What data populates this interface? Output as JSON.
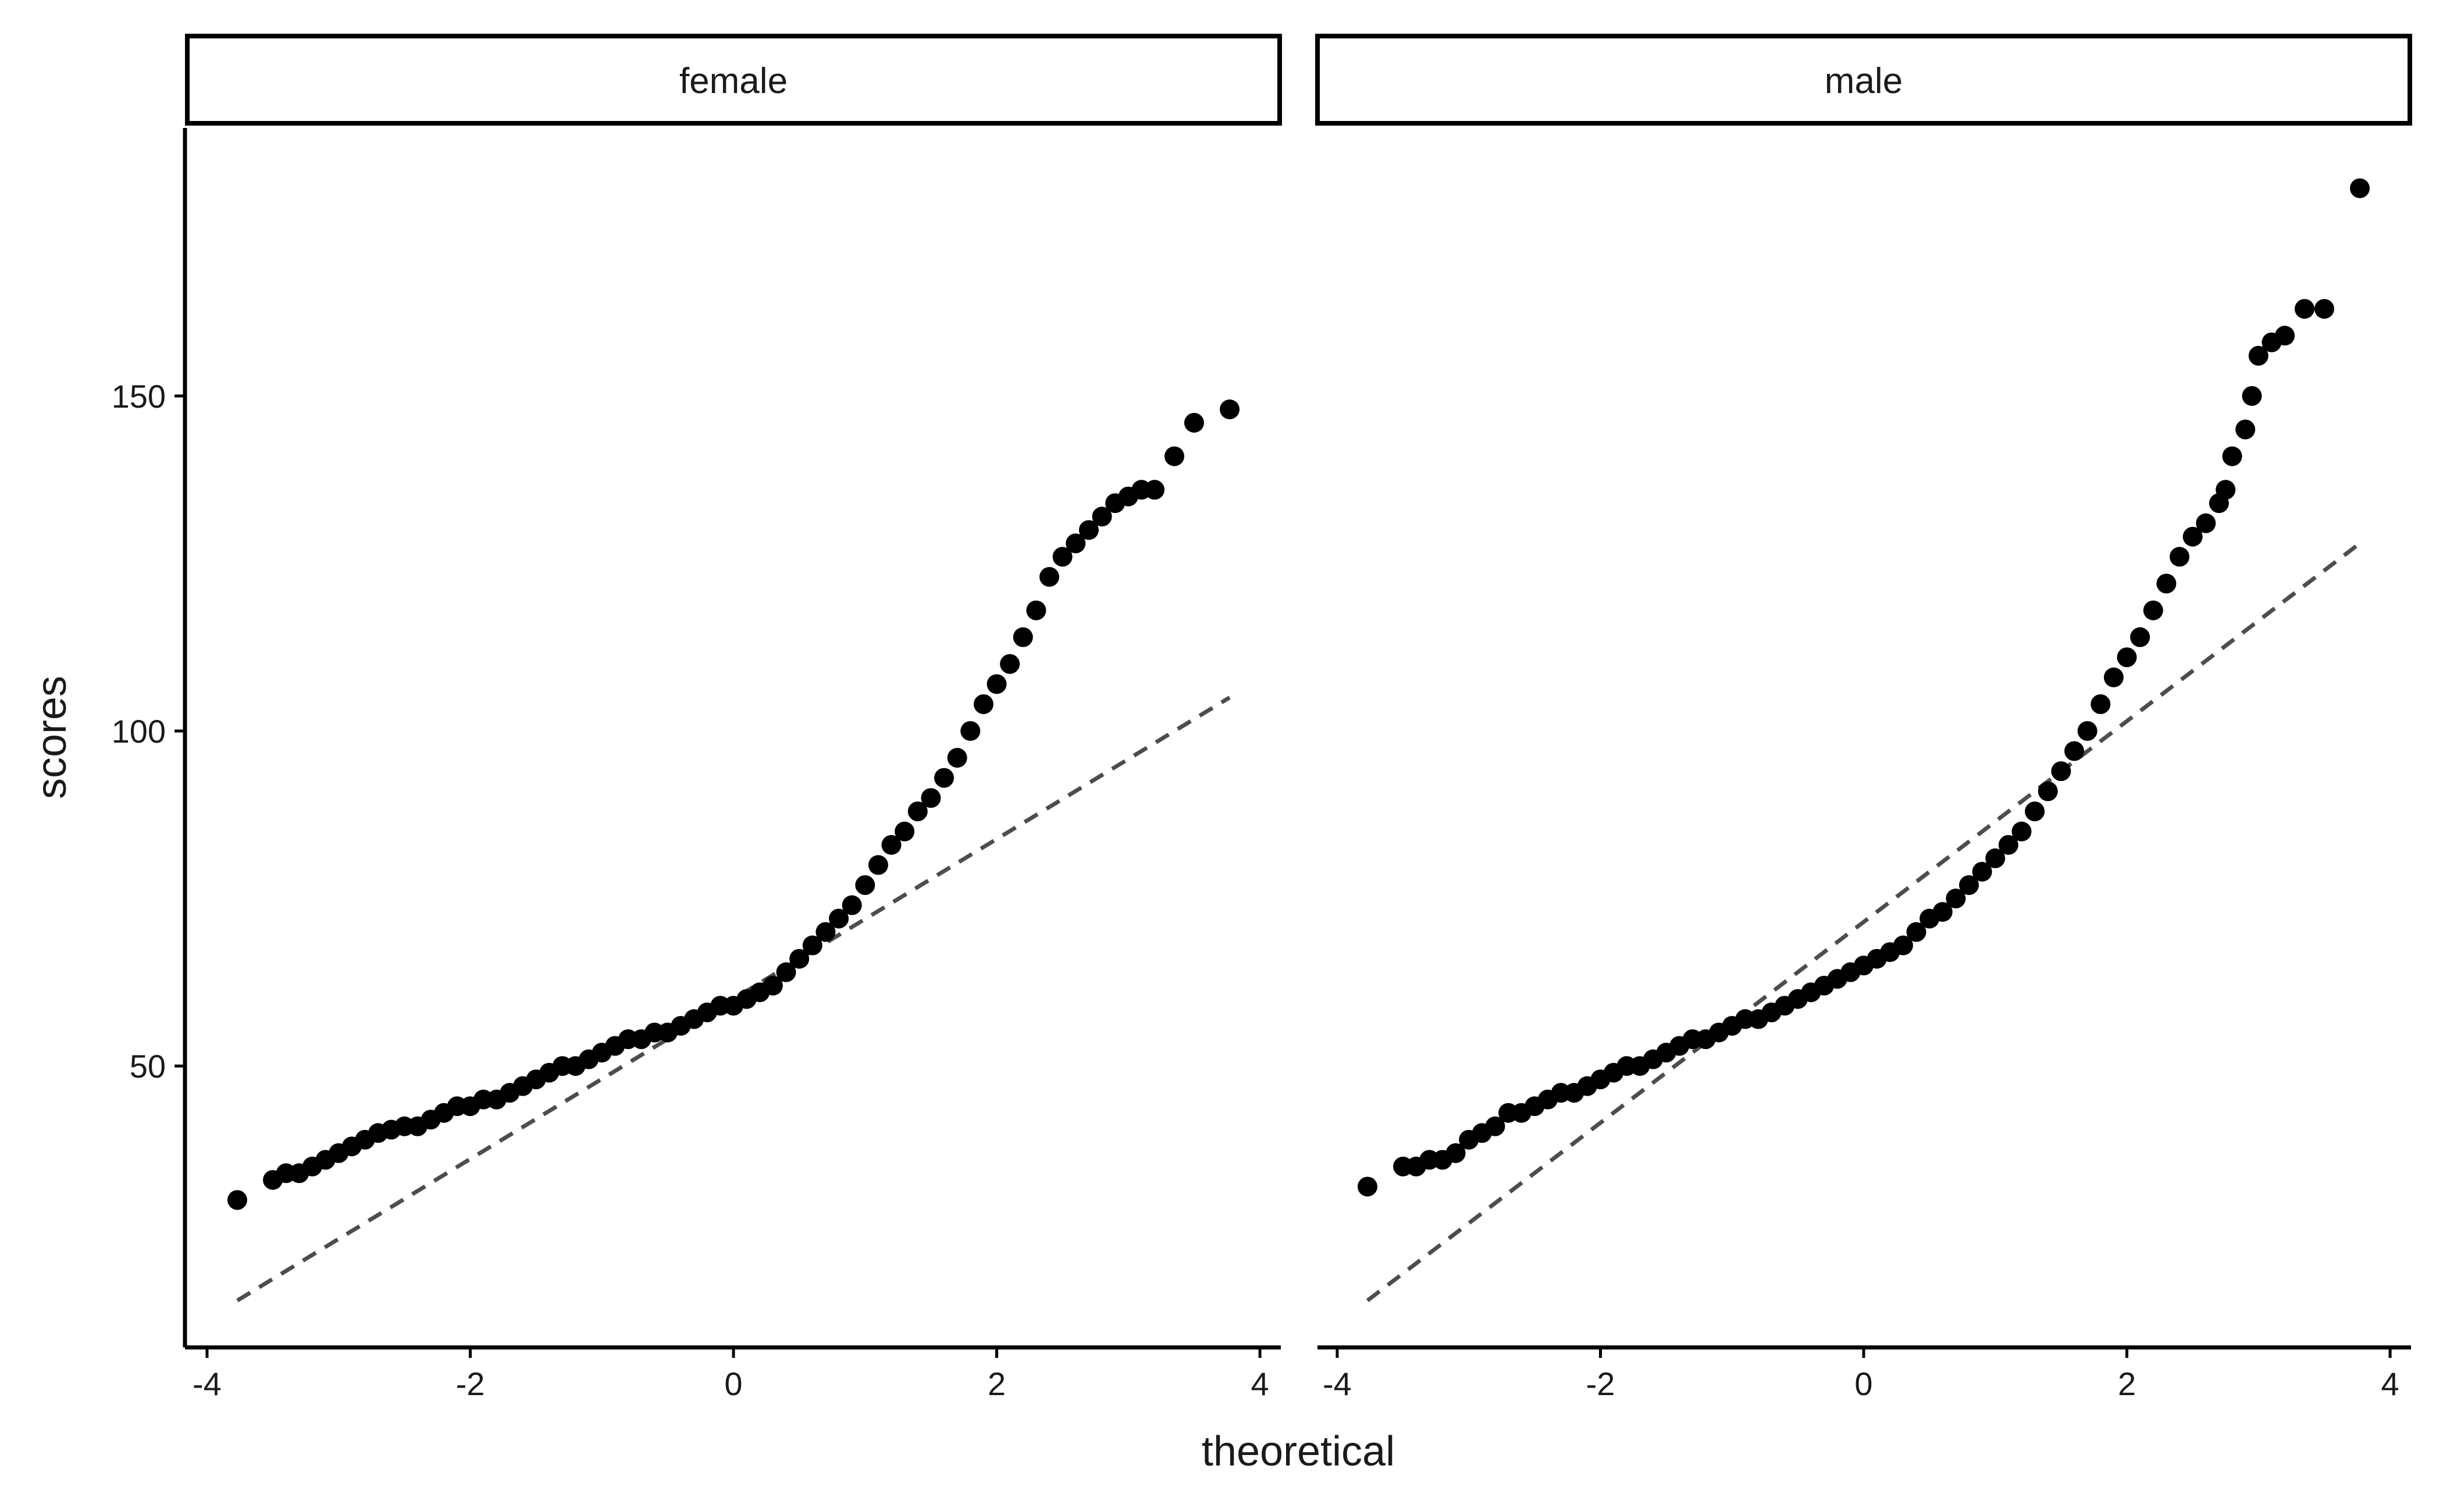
{
  "chart_data": {
    "type": "scatter",
    "subtype": "qq-plot",
    "xlabel": "theoretical",
    "ylabel": "scores",
    "xlim": [
      -4.15,
      4.15
    ],
    "ylim": [
      8,
      190
    ],
    "x_ticks": [
      -4,
      -2,
      0,
      2,
      4
    ],
    "x_tick_labels": [
      "-4",
      "-2",
      "0",
      "2",
      "4"
    ],
    "y_ticks": [
      50,
      100,
      150
    ],
    "y_tick_labels": [
      "50",
      "100",
      "150"
    ],
    "grid": false,
    "point_color": "#000000",
    "line_color": "#4d4d4d",
    "line_style": "dashed",
    "panels": [
      {
        "label": "female",
        "reference_line": {
          "x": [
            -3.77,
            3.77
          ],
          "y": [
            15,
            105
          ]
        },
        "points": {
          "x": [
            -3.77,
            -3.5,
            -3.4,
            -3.3,
            -3.2,
            -3.1,
            -3.0,
            -2.9,
            -2.8,
            -2.7,
            -2.6,
            -2.5,
            -2.4,
            -2.3,
            -2.2,
            -2.1,
            -2.0,
            -1.9,
            -1.8,
            -1.7,
            -1.6,
            -1.5,
            -1.4,
            -1.3,
            -1.2,
            -1.1,
            -1.0,
            -0.9,
            -0.8,
            -0.7,
            -0.6,
            -0.5,
            -0.4,
            -0.3,
            -0.2,
            -0.1,
            0.0,
            0.1,
            0.2,
            0.3,
            0.4,
            0.5,
            0.6,
            0.7,
            0.8,
            0.9,
            1.0,
            1.1,
            1.2,
            1.3,
            1.4,
            1.5,
            1.6,
            1.7,
            1.8,
            1.9,
            2.0,
            2.1,
            2.2,
            2.3,
            2.4,
            2.5,
            2.6,
            2.7,
            2.8,
            2.9,
            3.0,
            3.1,
            3.2,
            3.35,
            3.5,
            3.77
          ],
          "y": [
            30,
            33,
            34,
            34,
            35,
            36,
            37,
            38,
            39,
            40,
            40.5,
            41,
            41,
            42,
            43,
            44,
            44,
            45,
            45,
            46,
            47,
            48,
            49,
            50,
            50,
            51,
            52,
            53,
            54,
            54,
            55,
            55,
            56,
            57,
            58,
            59,
            59,
            60,
            61,
            62,
            64,
            66,
            68,
            70,
            72,
            74,
            77,
            80,
            83,
            85,
            88,
            90,
            93,
            96,
            100,
            104,
            107,
            110,
            114,
            118,
            123,
            126,
            128,
            130,
            132,
            134,
            135,
            136,
            136,
            141,
            146,
            148
          ]
        }
      },
      {
        "label": "male",
        "reference_line": {
          "x": [
            -3.77,
            3.77
          ],
          "y": [
            15,
            128
          ]
        },
        "points": {
          "x": [
            -3.77,
            -3.5,
            -3.4,
            -3.3,
            -3.2,
            -3.1,
            -3.0,
            -2.9,
            -2.8,
            -2.7,
            -2.6,
            -2.5,
            -2.4,
            -2.3,
            -2.2,
            -2.1,
            -2.0,
            -1.9,
            -1.8,
            -1.7,
            -1.6,
            -1.5,
            -1.4,
            -1.3,
            -1.2,
            -1.1,
            -1.0,
            -0.9,
            -0.8,
            -0.7,
            -0.6,
            -0.5,
            -0.4,
            -0.3,
            -0.2,
            -0.1,
            0.0,
            0.1,
            0.2,
            0.3,
            0.4,
            0.5,
            0.6,
            0.7,
            0.8,
            0.9,
            1.0,
            1.1,
            1.2,
            1.3,
            1.4,
            1.5,
            1.6,
            1.7,
            1.8,
            1.9,
            2.0,
            2.1,
            2.2,
            2.3,
            2.4,
            2.5,
            2.6,
            2.7,
            2.75,
            2.8,
            2.9,
            2.95,
            3.0,
            3.1,
            3.2,
            3.35,
            3.5,
            3.77
          ],
          "y": [
            32,
            35,
            35,
            36,
            36,
            37,
            39,
            40,
            41,
            43,
            43,
            44,
            45,
            46,
            46,
            47,
            48,
            49,
            50,
            50,
            51,
            52,
            53,
            54,
            54,
            55,
            56,
            57,
            57,
            58,
            59,
            60,
            61,
            62,
            63,
            64,
            65,
            66,
            67,
            68,
            70,
            72,
            73,
            75,
            77,
            79,
            81,
            83,
            85,
            88,
            91,
            94,
            97,
            100,
            104,
            108,
            111,
            114,
            118,
            122,
            126,
            129,
            131,
            134,
            136,
            141,
            145,
            150,
            156,
            158,
            159,
            163,
            163,
            181
          ]
        }
      }
    ]
  }
}
